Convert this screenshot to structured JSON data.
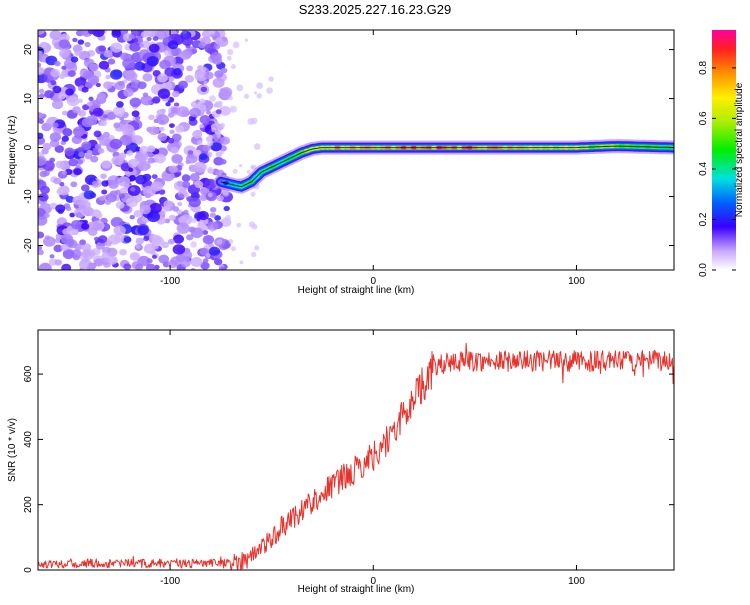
{
  "title": "S233.2025.227.16.23.G29",
  "chart_data": [
    {
      "type": "heatmap",
      "name": "spectrogram",
      "xlabel": "Height of straight line (km)",
      "ylabel": "Frequency (Hz)",
      "xlim": [
        -165,
        148
      ],
      "ylim": [
        -25,
        24
      ],
      "xticks": [
        -100,
        0,
        100
      ],
      "yticks": [
        -20,
        -10,
        0,
        10,
        20
      ],
      "colorbar": {
        "label": "Normalized spectral amplitude",
        "range": [
          0.0,
          0.95
        ],
        "ticks": [
          0.0,
          0.2,
          0.4,
          0.6,
          0.8
        ],
        "tick_labels": [
          "0.0",
          "0.2",
          "0.4",
          "0.6",
          "0.8"
        ]
      },
      "ridge": {
        "x": [
          -75,
          -70,
          -65,
          -60,
          -55,
          -50,
          -45,
          -40,
          -35,
          -30,
          -25,
          -20,
          -10,
          0,
          10,
          20,
          40,
          60,
          80,
          100,
          120,
          148
        ],
        "freq": [
          -7,
          -7.5,
          -8,
          -7,
          -5,
          -4,
          -3,
          -2,
          -1,
          -0.3,
          0,
          0,
          0,
          0,
          0,
          0,
          0,
          0,
          0,
          0,
          0.3,
          0
        ],
        "amp": [
          0.15,
          0.35,
          0.5,
          0.45,
          0.45,
          0.5,
          0.5,
          0.55,
          0.6,
          0.7,
          0.75,
          0.85,
          0.85,
          0.8,
          0.85,
          0.9,
          0.9,
          0.85,
          0.7,
          0.7,
          0.6,
          0.5
        ]
      },
      "noise_region_x": [
        -165,
        -72
      ]
    },
    {
      "type": "line",
      "name": "snr",
      "xlabel": "Height of straight line (km)",
      "ylabel": "SNR (10 * v/v)",
      "xlim": [
        -165,
        148
      ],
      "ylim": [
        0,
        735
      ],
      "xticks": [
        -100,
        0,
        100
      ],
      "yticks": [
        0,
        200,
        400,
        600
      ],
      "color": "#e8322c",
      "trend": {
        "x": [
          -165,
          -70,
          -60,
          -50,
          -40,
          -30,
          -20,
          -10,
          0,
          10,
          20,
          30,
          40,
          148
        ],
        "y": [
          20,
          20,
          40,
          100,
          160,
          210,
          260,
          300,
          350,
          420,
          530,
          620,
          640,
          640
        ]
      }
    }
  ]
}
